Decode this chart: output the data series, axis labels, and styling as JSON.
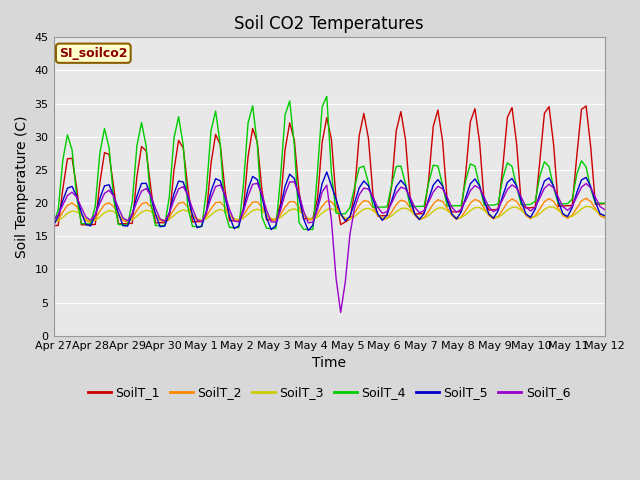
{
  "title": "Soil CO2 Temperatures",
  "xlabel": "Time",
  "ylabel": "Soil Temperature (C)",
  "ylim": [
    0,
    45
  ],
  "annotation": "SI_soilco2",
  "x_tick_labels": [
    "Apr 27",
    "Apr 28",
    "Apr 29",
    "Apr 30",
    "May 1",
    "May 2",
    "May 3",
    "May 4",
    "May 5",
    "May 6",
    "May 7",
    "May 8",
    "May 9",
    "May 10",
    "May 11",
    "May 12"
  ],
  "colors": {
    "SoilT_1": "#cc0000",
    "SoilT_2": "#ff8800",
    "SoilT_3": "#cccc00",
    "SoilT_4": "#00cc00",
    "SoilT_5": "#0000cc",
    "SoilT_6": "#9900cc"
  },
  "background_color": "#d8d8d8",
  "plot_bg_color": "#e8e8e8",
  "grid_color": "#ffffff",
  "title_fontsize": 12,
  "axis_label_fontsize": 10,
  "tick_fontsize": 8,
  "legend_fontsize": 9,
  "figsize": [
    6.4,
    4.8
  ],
  "dpi": 100
}
